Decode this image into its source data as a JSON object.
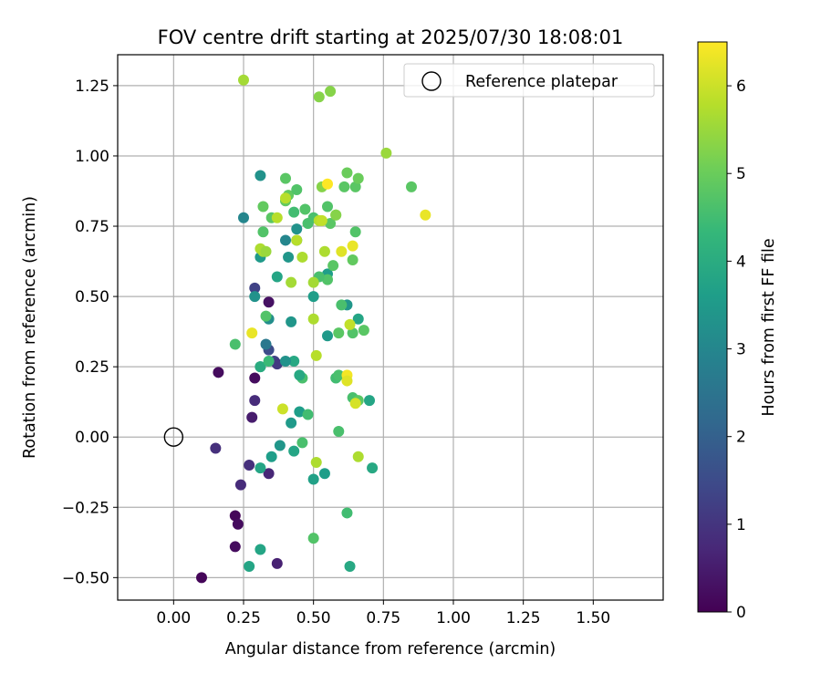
{
  "chart_data": {
    "type": "scatter",
    "title": "FOV centre drift starting at 2025/07/30 18:08:01",
    "xlabel": "Angular distance from reference (arcmin)",
    "ylabel": "Rotation from reference (arcmin)",
    "xlim": [
      -0.2,
      1.75
    ],
    "ylim": [
      -0.58,
      1.36
    ],
    "x_ticks": [
      0.0,
      0.25,
      0.5,
      0.75,
      1.0,
      1.25,
      1.5
    ],
    "x_tick_labels": [
      "0.00",
      "0.25",
      "0.50",
      "0.75",
      "1.00",
      "1.25",
      "1.50"
    ],
    "y_ticks": [
      -0.5,
      -0.25,
      0.0,
      0.25,
      0.5,
      0.75,
      1.0,
      1.25
    ],
    "y_tick_labels": [
      "−0.50",
      "−0.25",
      "0.00",
      "0.25",
      "0.50",
      "0.75",
      "1.00",
      "1.25"
    ],
    "grid": true,
    "legend": {
      "placement": "top-right",
      "entries": [
        "Reference platepar"
      ]
    },
    "reference_point": {
      "x": 0.0,
      "y": 0.0
    },
    "colorbar": {
      "label": "Hours from first FF file",
      "range": [
        0,
        6.5
      ],
      "ticks": [
        0,
        1,
        2,
        3,
        4,
        5,
        6
      ],
      "colormap": [
        "#440154",
        "#482878",
        "#3e4989",
        "#31688e",
        "#26828e",
        "#1f9e89",
        "#35b779",
        "#6ece58",
        "#b5de2b",
        "#fde725"
      ]
    },
    "points": [
      [
        0.1,
        -0.5,
        0.1
      ],
      [
        0.22,
        -0.39,
        0.2
      ],
      [
        0.22,
        -0.28,
        0.1
      ],
      [
        0.23,
        -0.31,
        0.2
      ],
      [
        0.24,
        -0.17,
        0.8
      ],
      [
        0.15,
        -0.04,
        0.9
      ],
      [
        0.16,
        0.23,
        0.2
      ],
      [
        0.27,
        -0.1,
        0.9
      ],
      [
        0.28,
        0.07,
        0.5
      ],
      [
        0.29,
        0.13,
        0.8
      ],
      [
        0.29,
        0.21,
        0.2
      ],
      [
        0.37,
        -0.45,
        0.6
      ],
      [
        0.34,
        -0.13,
        0.7
      ],
      [
        0.31,
        -0.4,
        3.8
      ],
      [
        0.27,
        -0.46,
        3.8
      ],
      [
        0.31,
        -0.11,
        3.8
      ],
      [
        0.35,
        -0.07,
        3.6
      ],
      [
        0.29,
        0.53,
        1.3
      ],
      [
        0.34,
        0.48,
        0.3
      ],
      [
        0.34,
        0.31,
        1.5
      ],
      [
        0.36,
        0.27,
        1.3
      ],
      [
        0.33,
        0.33,
        2.6
      ],
      [
        0.37,
        0.26,
        1.1
      ],
      [
        0.31,
        0.25,
        3.6
      ],
      [
        0.29,
        0.5,
        3.3
      ],
      [
        0.34,
        0.42,
        3.2
      ],
      [
        0.38,
        -0.03,
        3.4
      ],
      [
        0.43,
        -0.05,
        3.8
      ],
      [
        0.42,
        0.05,
        3.5
      ],
      [
        0.45,
        0.09,
        3.6
      ],
      [
        0.42,
        0.41,
        3.4
      ],
      [
        0.43,
        0.27,
        3.9
      ],
      [
        0.4,
        0.27,
        3.3
      ],
      [
        0.37,
        0.57,
        3.8
      ],
      [
        0.4,
        0.7,
        3.0
      ],
      [
        0.41,
        0.64,
        3.4
      ],
      [
        0.44,
        0.74,
        3.3
      ],
      [
        0.44,
        0.7,
        2.9
      ],
      [
        0.25,
        0.78,
        3.0
      ],
      [
        0.31,
        0.93,
        3.3
      ],
      [
        0.31,
        0.64,
        3.5
      ],
      [
        0.5,
        0.5,
        3.6
      ],
      [
        0.5,
        -0.15,
        3.7
      ],
      [
        0.54,
        -0.13,
        3.6
      ],
      [
        0.55,
        0.36,
        3.5
      ],
      [
        0.55,
        0.58,
        3.6
      ],
      [
        0.62,
        0.47,
        3.4
      ],
      [
        0.66,
        0.42,
        3.8
      ],
      [
        0.7,
        0.13,
        3.8
      ],
      [
        0.71,
        -0.11,
        3.9
      ],
      [
        0.63,
        -0.46,
        3.9
      ],
      [
        0.62,
        -0.27,
        4.5
      ],
      [
        0.5,
        -0.36,
        4.7
      ],
      [
        0.46,
        -0.02,
        4.6
      ],
      [
        0.48,
        0.08,
        4.5
      ],
      [
        0.46,
        0.21,
        4.6
      ],
      [
        0.45,
        0.22,
        3.9
      ],
      [
        0.33,
        0.43,
        4.7
      ],
      [
        0.31,
        0.25,
        4.0
      ],
      [
        0.22,
        0.33,
        4.6
      ],
      [
        0.34,
        0.27,
        4.4
      ],
      [
        0.59,
        0.02,
        4.6
      ],
      [
        0.58,
        0.21,
        4.5
      ],
      [
        0.59,
        0.22,
        4.6
      ],
      [
        0.6,
        0.47,
        4.6
      ],
      [
        0.59,
        0.37,
        4.8
      ],
      [
        0.64,
        0.37,
        4.7
      ],
      [
        0.68,
        0.38,
        4.8
      ],
      [
        0.64,
        0.14,
        4.6
      ],
      [
        0.66,
        0.13,
        4.8
      ],
      [
        0.64,
        0.63,
        4.9
      ],
      [
        0.65,
        0.73,
        4.7
      ],
      [
        0.57,
        0.61,
        4.8
      ],
      [
        0.55,
        0.56,
        4.7
      ],
      [
        0.52,
        0.57,
        4.6
      ],
      [
        0.56,
        0.76,
        4.8
      ],
      [
        0.48,
        0.76,
        4.6
      ],
      [
        0.5,
        0.78,
        4.6
      ],
      [
        0.47,
        0.81,
        4.7
      ],
      [
        0.43,
        0.8,
        4.5
      ],
      [
        0.35,
        0.78,
        4.8
      ],
      [
        0.32,
        0.73,
        4.7
      ],
      [
        0.32,
        0.82,
        4.9
      ],
      [
        0.4,
        0.84,
        4.9
      ],
      [
        0.41,
        0.86,
        4.9
      ],
      [
        0.44,
        0.88,
        4.7
      ],
      [
        0.4,
        0.92,
        4.8
      ],
      [
        0.55,
        0.82,
        4.7
      ],
      [
        0.53,
        0.89,
        5.3
      ],
      [
        0.61,
        0.89,
        4.8
      ],
      [
        0.62,
        0.94,
        5.0
      ],
      [
        0.65,
        0.89,
        4.8
      ],
      [
        0.66,
        0.92,
        5.0
      ],
      [
        0.58,
        0.79,
        5.0
      ],
      [
        0.58,
        0.79,
        5.3
      ],
      [
        0.25,
        1.27,
        5.6
      ],
      [
        0.52,
        1.21,
        5.3
      ],
      [
        0.56,
        1.23,
        5.3
      ],
      [
        0.76,
        1.01,
        5.5
      ],
      [
        0.85,
        0.89,
        4.8
      ],
      [
        0.32,
        0.66,
        5.6
      ],
      [
        0.31,
        0.67,
        5.7
      ],
      [
        0.33,
        0.66,
        5.5
      ],
      [
        0.46,
        0.64,
        5.7
      ],
      [
        0.42,
        0.55,
        5.6
      ],
      [
        0.5,
        0.55,
        5.6
      ],
      [
        0.54,
        0.66,
        5.7
      ],
      [
        0.37,
        0.78,
        5.8
      ],
      [
        0.4,
        0.85,
        5.8
      ],
      [
        0.44,
        0.7,
        5.8
      ],
      [
        0.52,
        0.77,
        5.8
      ],
      [
        0.53,
        0.77,
        5.9
      ],
      [
        0.5,
        0.42,
        5.7
      ],
      [
        0.51,
        0.29,
        5.8
      ],
      [
        0.51,
        -0.09,
        5.7
      ],
      [
        0.66,
        -0.07,
        5.7
      ],
      [
        0.63,
        0.4,
        5.9
      ],
      [
        0.28,
        0.37,
        6.3
      ],
      [
        0.39,
        0.1,
        6.0
      ],
      [
        0.55,
        0.9,
        6.5
      ],
      [
        0.6,
        0.66,
        6.2
      ],
      [
        0.64,
        0.68,
        6.3
      ],
      [
        0.62,
        0.22,
        6.4
      ],
      [
        0.62,
        0.2,
        6.2
      ],
      [
        0.65,
        0.12,
        6.1
      ],
      [
        0.9,
        0.79,
        6.3
      ]
    ]
  }
}
